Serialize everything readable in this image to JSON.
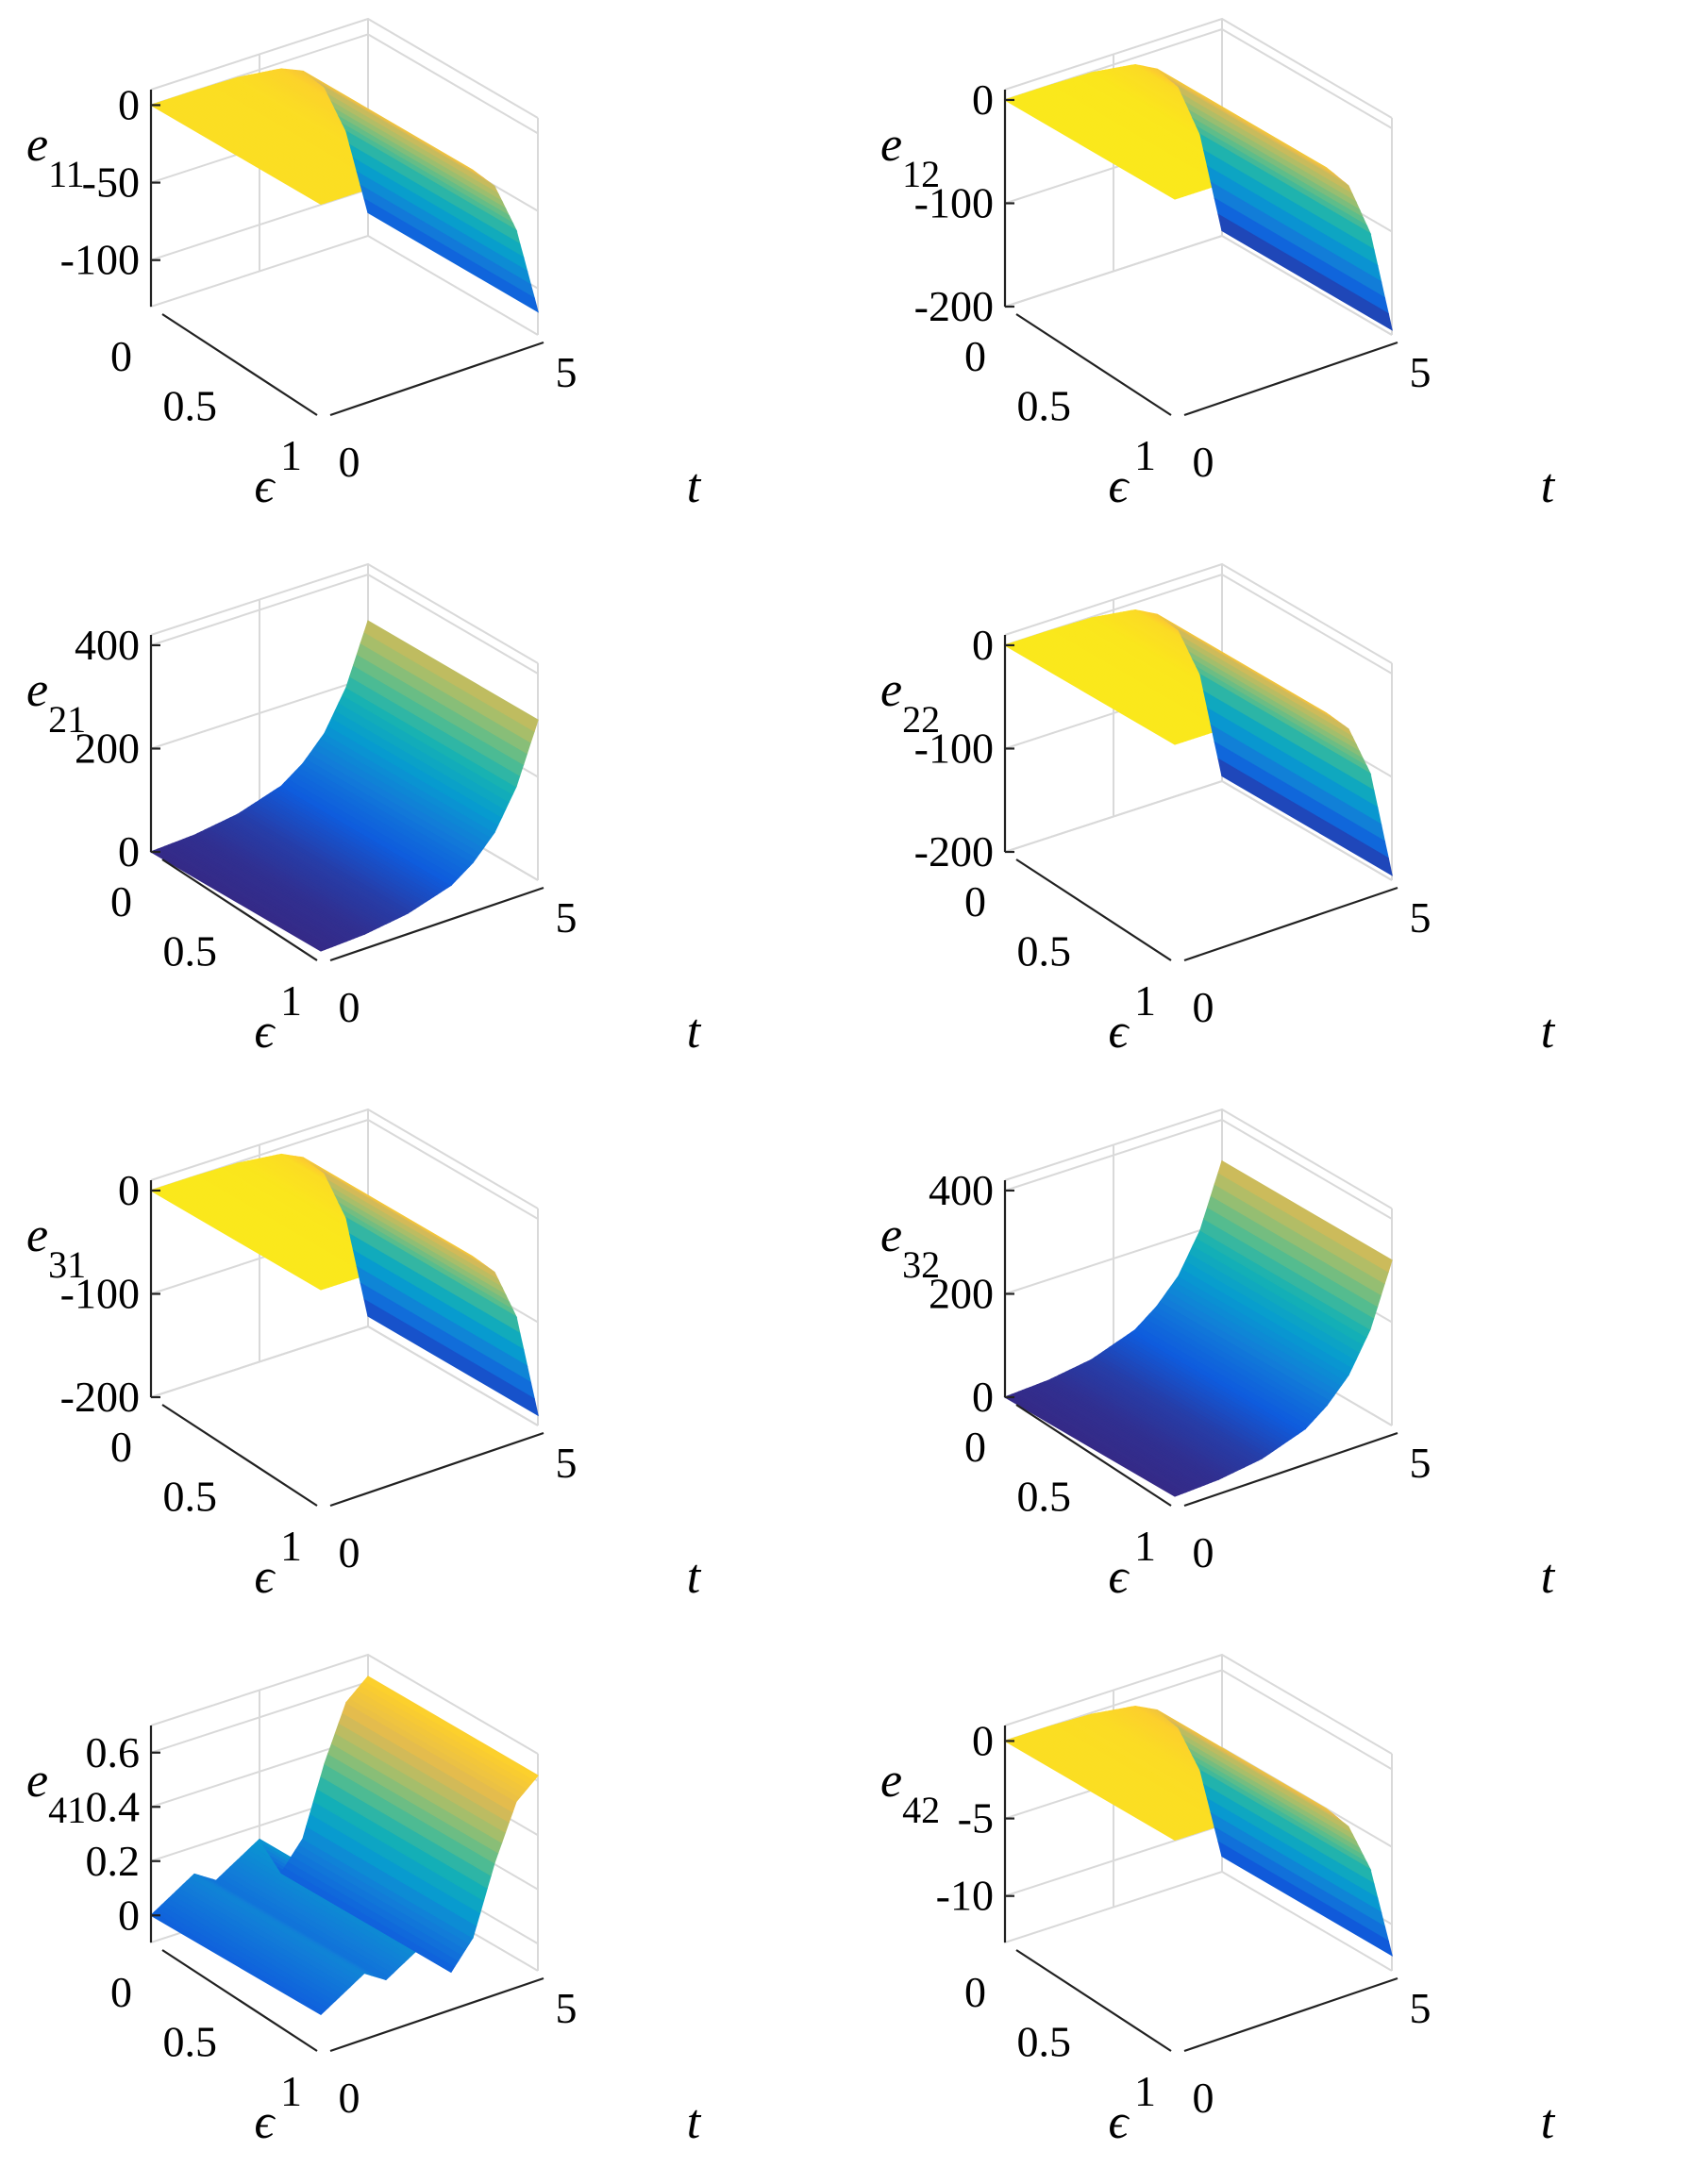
{
  "chart_data": [
    {
      "type": "surface",
      "zlabel": "e",
      "zlabel_sub": "11",
      "xlabel": "t",
      "ylabel": "ϵ",
      "xlim": [
        0,
        5
      ],
      "ylim": [
        0,
        1
      ],
      "zlim": [
        -130,
        10
      ],
      "xticks": [
        "0",
        "5"
      ],
      "yticks": [
        "0",
        "0.5",
        "1"
      ],
      "zticks": [
        {
          "v": 0,
          "label": "0"
        },
        {
          "v": -50,
          "label": "-50"
        },
        {
          "v": -100,
          "label": "-100"
        }
      ],
      "profile": {
        "t": [
          0,
          1,
          2,
          3,
          3.5,
          4,
          4.5,
          5
        ],
        "z": [
          0,
          0,
          -0.5,
          -4,
          -10,
          -25,
          -58,
          -115
        ]
      },
      "eps_range": [
        0,
        1
      ]
    },
    {
      "type": "surface",
      "zlabel": "e",
      "zlabel_sub": "12",
      "xlabel": "t",
      "ylabel": "ϵ",
      "xlim": [
        0,
        5
      ],
      "ylim": [
        0,
        1
      ],
      "zlim": [
        -200,
        10
      ],
      "xticks": [
        "0",
        "5"
      ],
      "yticks": [
        "0",
        "0.5",
        "1"
      ],
      "zticks": [
        {
          "v": 0,
          "label": "0"
        },
        {
          "v": -100,
          "label": "-100"
        },
        {
          "v": -200,
          "label": "-200"
        }
      ],
      "profile": {
        "t": [
          0,
          1,
          2,
          3,
          3.5,
          4,
          4.5,
          5
        ],
        "z": [
          0,
          0,
          -1,
          -7,
          -18,
          -42,
          -95,
          -195
        ]
      },
      "eps_range": [
        0,
        1
      ]
    },
    {
      "type": "surface",
      "zlabel": "e",
      "zlabel_sub": "21",
      "xlabel": "t",
      "ylabel": "ϵ",
      "xlim": [
        0,
        5
      ],
      "ylim": [
        0,
        1
      ],
      "zlim": [
        0,
        420
      ],
      "xticks": [
        "0",
        "5"
      ],
      "yticks": [
        "0",
        "0.5",
        "1"
      ],
      "zticks": [
        {
          "v": 0,
          "label": "0"
        },
        {
          "v": 200,
          "label": "200"
        },
        {
          "v": 400,
          "label": "400"
        }
      ],
      "profile": {
        "t": [
          0,
          1,
          2,
          3,
          3.5,
          4,
          4.5,
          5
        ],
        "z": [
          0,
          5,
          18,
          45,
          75,
          120,
          195,
          310
        ]
      },
      "eps_range": [
        0,
        1
      ]
    },
    {
      "type": "surface",
      "zlabel": "e",
      "zlabel_sub": "22",
      "xlabel": "t",
      "ylabel": "ϵ",
      "xlim": [
        0,
        5
      ],
      "ylim": [
        0,
        1
      ],
      "zlim": [
        -200,
        10
      ],
      "xticks": [
        "0",
        "5"
      ],
      "yticks": [
        "0",
        "0.5",
        "1"
      ],
      "zticks": [
        {
          "v": 0,
          "label": "0"
        },
        {
          "v": -100,
          "label": "-100"
        },
        {
          "v": -200,
          "label": "-200"
        }
      ],
      "profile": {
        "t": [
          0,
          1,
          2,
          3,
          3.5,
          4,
          4.5,
          5
        ],
        "z": [
          0,
          0,
          -1,
          -7,
          -18,
          -40,
          -90,
          -195
        ]
      },
      "eps_range": [
        0,
        1
      ]
    },
    {
      "type": "surface",
      "zlabel": "e",
      "zlabel_sub": "31",
      "xlabel": "t",
      "ylabel": "ϵ",
      "xlim": [
        0,
        5
      ],
      "ylim": [
        0,
        1
      ],
      "zlim": [
        -200,
        10
      ],
      "xticks": [
        "0",
        "5"
      ],
      "yticks": [
        "0",
        "0.5",
        "1"
      ],
      "zticks": [
        {
          "v": 0,
          "label": "0"
        },
        {
          "v": -100,
          "label": "-100"
        },
        {
          "v": -200,
          "label": "-200"
        }
      ],
      "profile": {
        "t": [
          0,
          1,
          2,
          3,
          3.5,
          4,
          4.5,
          5
        ],
        "z": [
          0,
          0,
          -1,
          -6,
          -16,
          -38,
          -88,
          -190
        ]
      },
      "eps_range": [
        0,
        1
      ]
    },
    {
      "type": "surface",
      "zlabel": "e",
      "zlabel_sub": "32",
      "xlabel": "t",
      "ylabel": "ϵ",
      "xlim": [
        0,
        5
      ],
      "ylim": [
        0,
        1
      ],
      "zlim": [
        0,
        420
      ],
      "xticks": [
        "0",
        "5"
      ],
      "yticks": [
        "0",
        "0.5",
        "1"
      ],
      "zticks": [
        {
          "v": 0,
          "label": "0"
        },
        {
          "v": 200,
          "label": "200"
        },
        {
          "v": 400,
          "label": "400"
        }
      ],
      "profile": {
        "t": [
          0,
          1,
          2,
          3,
          3.5,
          4,
          4.5,
          5
        ],
        "z": [
          0,
          5,
          18,
          48,
          80,
          125,
          200,
          320
        ]
      },
      "eps_range": [
        0,
        1
      ]
    },
    {
      "type": "surface",
      "zlabel": "e",
      "zlabel_sub": "41",
      "xlabel": "t",
      "ylabel": "ϵ",
      "xlim": [
        0,
        5
      ],
      "ylim": [
        0,
        1
      ],
      "zlim": [
        -0.1,
        0.7
      ],
      "xticks": [
        "0",
        "5"
      ],
      "yticks": [
        "0",
        "0.5",
        "1"
      ],
      "zticks": [
        {
          "v": 0,
          "label": "0"
        },
        {
          "v": 0.2,
          "label": "0.2"
        },
        {
          "v": 0.4,
          "label": "0.4"
        },
        {
          "v": 0.6,
          "label": "0.6"
        }
      ],
      "profile": {
        "t": [
          0,
          0.5,
          1,
          1.5,
          2,
          2.5,
          3,
          3.5,
          4,
          4.5,
          5
        ],
        "z": [
          0.0,
          0.05,
          0.1,
          0.05,
          0.1,
          0.15,
          0.0,
          0.1,
          0.35,
          0.55,
          0.62
        ]
      },
      "eps_range": [
        0,
        1
      ]
    },
    {
      "type": "surface",
      "zlabel": "e",
      "zlabel_sub": "42",
      "xlabel": "t",
      "ylabel": "ϵ",
      "xlim": [
        0,
        5
      ],
      "ylim": [
        0,
        1
      ],
      "zlim": [
        -13,
        1
      ],
      "xticks": [
        "0",
        "5"
      ],
      "yticks": [
        "0",
        "0.5",
        "1"
      ],
      "zticks": [
        {
          "v": 0,
          "label": "0"
        },
        {
          "v": -5,
          "label": "-5"
        },
        {
          "v": -10,
          "label": "-10"
        }
      ],
      "profile": {
        "t": [
          0,
          1,
          2,
          3,
          3.5,
          4,
          4.5,
          5
        ],
        "z": [
          0,
          0,
          -0.1,
          -0.5,
          -1.2,
          -2.8,
          -6,
          -12
        ]
      },
      "eps_range": [
        0,
        1
      ]
    }
  ]
}
